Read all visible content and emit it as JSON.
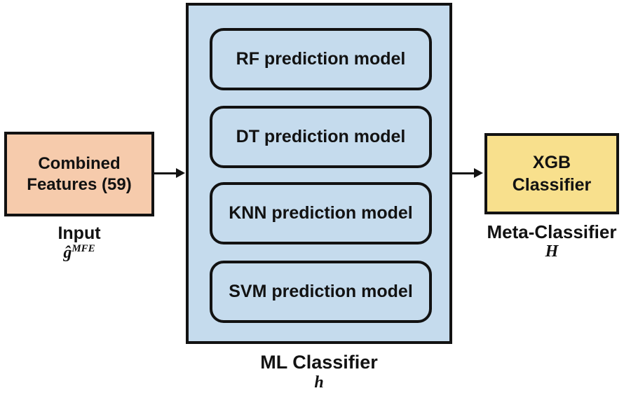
{
  "diagram": {
    "input": {
      "box_line1": "Combined",
      "box_line2": "Features (59)",
      "caption": "Input",
      "symbol_base": "ĝ",
      "symbol_sup": "MFE"
    },
    "classifier": {
      "models": [
        "RF prediction model",
        "DT prediction model",
        "KNN prediction model",
        "SVM prediction model"
      ],
      "caption": "ML Classifier",
      "symbol": "h"
    },
    "meta": {
      "box_line1": "XGB",
      "box_line2": "Classifier",
      "caption": "Meta-Classifier",
      "symbol": "H"
    },
    "colors": {
      "input_fill": "#F6CBAC",
      "classifier_fill": "#C5DBED",
      "meta_fill": "#F8E08D",
      "border": "#121212",
      "background": "#FFFFFF"
    }
  }
}
